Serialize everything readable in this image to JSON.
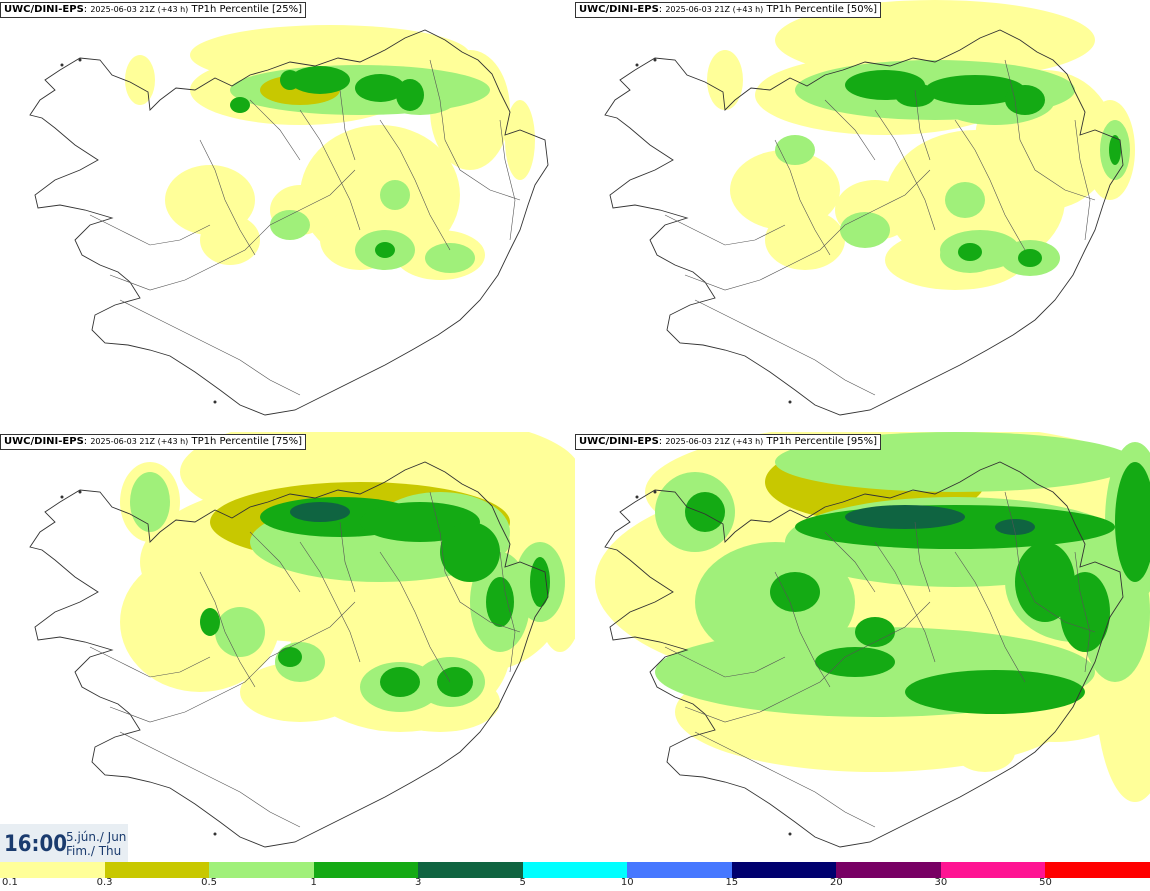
{
  "panels": [
    {
      "source": "UWC/DINI-EPS",
      "run": "2025-06-03 21Z (+43 h)",
      "field": "TP1h Percentile [25%]",
      "percentile": 25
    },
    {
      "source": "UWC/DINI-EPS",
      "run": "2025-06-03 21Z (+43 h)",
      "field": "TP1h Percentile [50%]",
      "percentile": 50
    },
    {
      "source": "UWC/DINI-EPS",
      "run": "2025-06-03 21Z (+43 h)",
      "field": "TP1h Percentile [75%]",
      "percentile": 75
    },
    {
      "source": "UWC/DINI-EPS",
      "run": "2025-06-03 21Z (+43 h)",
      "field": "TP1h Percentile [95%]",
      "percentile": 95
    }
  ],
  "valid_time": {
    "hour": "16:00",
    "date_line1": "5.jún./ Jun",
    "date_line2": "Fim./ Thu"
  },
  "colorbar": {
    "colors": [
      "#ffff99",
      "#c8c800",
      "#a0f07a",
      "#14aa14",
      "#0f6441",
      "#00ffff",
      "#4678ff",
      "#00006e",
      "#780064",
      "#ff1493",
      "#ff0000"
    ],
    "labels": [
      "0.1",
      "0.3",
      "0.5",
      "1",
      "3",
      "5",
      "10",
      "15",
      "20",
      "30",
      "50"
    ]
  }
}
